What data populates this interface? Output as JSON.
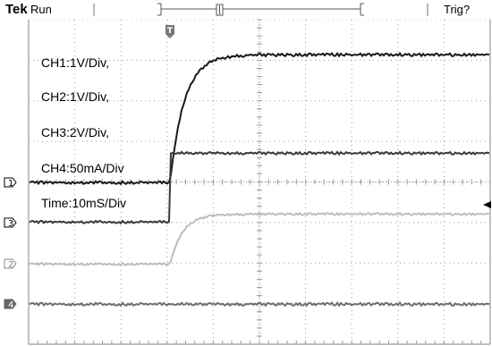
{
  "header": {
    "brand": "Tek",
    "run_state": "Run",
    "trigger_state": "Trig?",
    "trigger_marker_label": "T"
  },
  "annotations": {
    "ch1": "CH1:1V/Div,",
    "ch2": "CH2:1V/Div,",
    "ch3": "CH3:2V/Div,",
    "ch4": "CH4:50mA/Div",
    "time": "Time:10mS/Div"
  },
  "channel_markers": [
    "1",
    "3",
    "2",
    "4"
  ],
  "colors": {
    "graticule": "#9a9a9a",
    "ch1_trace": "#1a1a1a",
    "ch3_trace": "#3a3a3a",
    "ch2_trace": "#bdbdbd",
    "ch4_trace": "#6e6e6e",
    "text": "#000000"
  },
  "waveforms": {
    "ch1": "rc-rise step at trigger",
    "ch2": "rc-rise step at trigger (small amplitude)",
    "ch3": "instant step at trigger",
    "ch4": "flat baseline"
  }
}
